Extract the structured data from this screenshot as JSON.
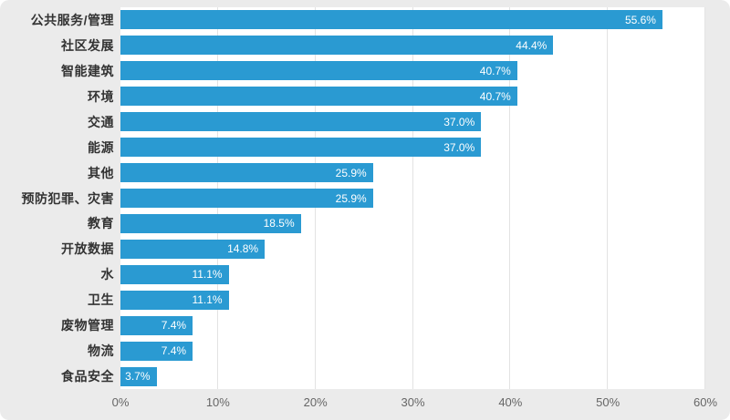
{
  "chart_data": {
    "type": "bar",
    "orientation": "horizontal",
    "title": "",
    "xlabel": "",
    "ylabel": "",
    "categories": [
      "公共服务/管理",
      "社区发展",
      "智能建筑",
      "环境",
      "交通",
      "能源",
      "其他",
      "预防犯罪、灾害",
      "教育",
      "开放数据",
      "水",
      "卫生",
      "废物管理",
      "物流",
      "食品安全"
    ],
    "values": [
      55.6,
      44.4,
      40.7,
      40.7,
      37.0,
      37.0,
      25.9,
      25.9,
      18.5,
      14.8,
      11.1,
      11.1,
      7.4,
      7.4,
      3.7
    ],
    "value_labels": [
      "55.6%",
      "44.4%",
      "40.7%",
      "40.7%",
      "37.0%",
      "37.0%",
      "25.9%",
      "25.9%",
      "18.5%",
      "14.8%",
      "11.1%",
      "11.1%",
      "7.4%",
      "7.4%",
      "3.7%"
    ],
    "xlim": [
      0,
      60
    ],
    "x_ticks": [
      "0%",
      "10%",
      "20%",
      "30%",
      "40%",
      "50%",
      "60%"
    ],
    "grid": true,
    "legend": "none"
  },
  "colors": {
    "background": "#ebebeb",
    "plot_background": "#ffffff",
    "gridline": "#e3e3e3",
    "bar": "#2a9ad2",
    "value_label": "#ffffff",
    "category_label": "#333333",
    "tick_label": "#666666"
  }
}
